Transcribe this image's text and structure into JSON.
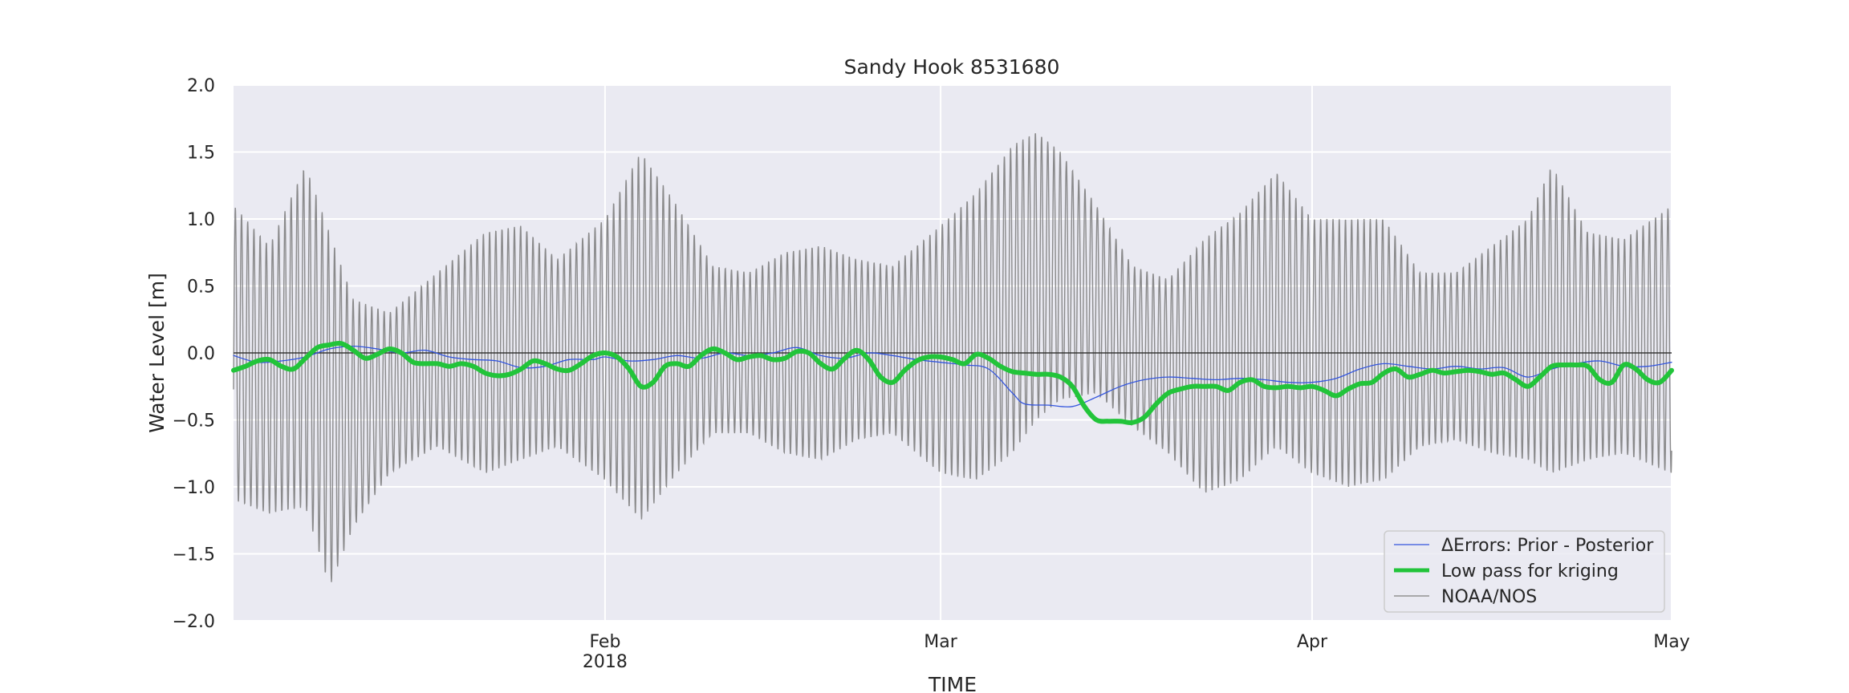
{
  "chart_data": {
    "type": "line",
    "title": "Sandy Hook  8531680",
    "xlabel": "TIME",
    "ylabel": "Water Level [m]",
    "ylim": [
      -2.0,
      2.0
    ],
    "xlim": [
      "2018-01-01",
      "2018-05-01"
    ],
    "grid": true,
    "background": "#eaeaf2",
    "x_ticks": [
      {
        "date": "2018-02-01",
        "label": "Feb",
        "sublabel": "2018"
      },
      {
        "date": "2018-03-01",
        "label": "Mar",
        "sublabel": ""
      },
      {
        "date": "2018-04-01",
        "label": "Apr",
        "sublabel": ""
      },
      {
        "date": "2018-05-01",
        "label": "May",
        "sublabel": ""
      }
    ],
    "y_ticks": [
      {
        "value": 2.0,
        "label": "2.0"
      },
      {
        "value": 1.5,
        "label": "1.5"
      },
      {
        "value": 1.0,
        "label": "1.0"
      },
      {
        "value": 0.5,
        "label": "0.5"
      },
      {
        "value": 0.0,
        "label": "0.0"
      },
      {
        "value": -0.5,
        "label": "−0.5"
      },
      {
        "value": -1.0,
        "label": "−1.0"
      },
      {
        "value": -1.5,
        "label": "−1.5"
      },
      {
        "value": -2.0,
        "label": "−2.0"
      }
    ],
    "legend_position": "lower-right",
    "series": [
      {
        "name": "ΔErrors: Prior - Posterior",
        "color": "#3355dd",
        "points": [
          [
            "2018-01-01",
            -0.02
          ],
          [
            "2018-01-03",
            -0.07
          ],
          [
            "2018-01-05",
            -0.06
          ],
          [
            "2018-01-07",
            -0.03
          ],
          [
            "2018-01-09",
            0.03
          ],
          [
            "2018-01-11",
            0.05
          ],
          [
            "2018-01-13",
            0.03
          ],
          [
            "2018-01-15",
            0.0
          ],
          [
            "2018-01-17",
            0.02
          ],
          [
            "2018-01-19",
            -0.03
          ],
          [
            "2018-01-21",
            -0.05
          ],
          [
            "2018-01-23",
            -0.06
          ],
          [
            "2018-01-25",
            -0.11
          ],
          [
            "2018-01-27",
            -0.1
          ],
          [
            "2018-01-29",
            -0.05
          ],
          [
            "2018-01-31",
            -0.05
          ],
          [
            "2018-02-01",
            -0.03
          ],
          [
            "2018-02-03",
            -0.06
          ],
          [
            "2018-02-05",
            -0.05
          ],
          [
            "2018-02-07",
            -0.02
          ],
          [
            "2018-02-09",
            -0.04
          ],
          [
            "2018-02-11",
            0.0
          ],
          [
            "2018-02-13",
            -0.02
          ],
          [
            "2018-02-15",
            0.0
          ],
          [
            "2018-02-17",
            0.04
          ],
          [
            "2018-02-19",
            -0.02
          ],
          [
            "2018-02-21",
            -0.04
          ],
          [
            "2018-02-23",
            0.0
          ],
          [
            "2018-02-25",
            -0.02
          ],
          [
            "2018-02-27",
            -0.05
          ],
          [
            "2018-03-01",
            -0.07
          ],
          [
            "2018-03-03",
            -0.09
          ],
          [
            "2018-03-05",
            -0.12
          ],
          [
            "2018-03-07",
            -0.3
          ],
          [
            "2018-03-08",
            -0.38
          ],
          [
            "2018-03-10",
            -0.39
          ],
          [
            "2018-03-12",
            -0.4
          ],
          [
            "2018-03-14",
            -0.33
          ],
          [
            "2018-03-16",
            -0.25
          ],
          [
            "2018-03-18",
            -0.2
          ],
          [
            "2018-03-20",
            -0.18
          ],
          [
            "2018-03-22",
            -0.19
          ],
          [
            "2018-03-24",
            -0.2
          ],
          [
            "2018-03-26",
            -0.19
          ],
          [
            "2018-03-28",
            -0.2
          ],
          [
            "2018-03-30",
            -0.22
          ],
          [
            "2018-04-01",
            -0.22
          ],
          [
            "2018-04-03",
            -0.19
          ],
          [
            "2018-04-05",
            -0.12
          ],
          [
            "2018-04-07",
            -0.08
          ],
          [
            "2018-04-09",
            -0.1
          ],
          [
            "2018-04-11",
            -0.12
          ],
          [
            "2018-04-13",
            -0.1
          ],
          [
            "2018-04-15",
            -0.12
          ],
          [
            "2018-04-17",
            -0.11
          ],
          [
            "2018-04-19",
            -0.18
          ],
          [
            "2018-04-21",
            -0.12
          ],
          [
            "2018-04-23",
            -0.08
          ],
          [
            "2018-04-25",
            -0.06
          ],
          [
            "2018-04-27",
            -0.1
          ],
          [
            "2018-04-29",
            -0.1
          ],
          [
            "2018-05-01",
            -0.07
          ]
        ]
      },
      {
        "name": "Low pass for kriging",
        "color": "#22c43a",
        "points": [
          [
            "2018-01-01",
            -0.13
          ],
          [
            "2018-01-02",
            -0.1
          ],
          [
            "2018-01-03",
            -0.06
          ],
          [
            "2018-01-04",
            -0.05
          ],
          [
            "2018-01-05",
            -0.1
          ],
          [
            "2018-01-06",
            -0.12
          ],
          [
            "2018-01-07",
            -0.04
          ],
          [
            "2018-01-08",
            0.04
          ],
          [
            "2018-01-09",
            0.06
          ],
          [
            "2018-01-10",
            0.07
          ],
          [
            "2018-01-11",
            0.02
          ],
          [
            "2018-01-12",
            -0.04
          ],
          [
            "2018-01-13",
            -0.01
          ],
          [
            "2018-01-14",
            0.03
          ],
          [
            "2018-01-15",
            0.0
          ],
          [
            "2018-01-16",
            -0.07
          ],
          [
            "2018-01-17",
            -0.08
          ],
          [
            "2018-01-18",
            -0.08
          ],
          [
            "2018-01-19",
            -0.1
          ],
          [
            "2018-01-20",
            -0.08
          ],
          [
            "2018-01-21",
            -0.1
          ],
          [
            "2018-01-22",
            -0.15
          ],
          [
            "2018-01-23",
            -0.17
          ],
          [
            "2018-01-24",
            -0.16
          ],
          [
            "2018-01-25",
            -0.12
          ],
          [
            "2018-01-26",
            -0.06
          ],
          [
            "2018-01-27",
            -0.08
          ],
          [
            "2018-01-28",
            -0.12
          ],
          [
            "2018-01-29",
            -0.13
          ],
          [
            "2018-01-30",
            -0.08
          ],
          [
            "2018-01-31",
            -0.02
          ],
          [
            "2018-02-01",
            0.0
          ],
          [
            "2018-02-02",
            -0.03
          ],
          [
            "2018-02-03",
            -0.12
          ],
          [
            "2018-02-04",
            -0.25
          ],
          [
            "2018-02-05",
            -0.22
          ],
          [
            "2018-02-06",
            -0.1
          ],
          [
            "2018-02-07",
            -0.08
          ],
          [
            "2018-02-08",
            -0.1
          ],
          [
            "2018-02-09",
            -0.02
          ],
          [
            "2018-02-10",
            0.03
          ],
          [
            "2018-02-11",
            0.0
          ],
          [
            "2018-02-12",
            -0.05
          ],
          [
            "2018-02-13",
            -0.03
          ],
          [
            "2018-02-14",
            -0.02
          ],
          [
            "2018-02-15",
            -0.05
          ],
          [
            "2018-02-16",
            -0.04
          ],
          [
            "2018-02-17",
            0.01
          ],
          [
            "2018-02-18",
            0.0
          ],
          [
            "2018-02-19",
            -0.08
          ],
          [
            "2018-02-20",
            -0.12
          ],
          [
            "2018-02-21",
            -0.04
          ],
          [
            "2018-02-22",
            0.02
          ],
          [
            "2018-02-23",
            -0.05
          ],
          [
            "2018-02-24",
            -0.18
          ],
          [
            "2018-02-25",
            -0.22
          ],
          [
            "2018-02-26",
            -0.13
          ],
          [
            "2018-02-27",
            -0.06
          ],
          [
            "2018-02-28",
            -0.03
          ],
          [
            "2018-03-01",
            -0.03
          ],
          [
            "2018-03-02",
            -0.05
          ],
          [
            "2018-03-03",
            -0.08
          ],
          [
            "2018-03-04",
            -0.01
          ],
          [
            "2018-03-05",
            -0.04
          ],
          [
            "2018-03-06",
            -0.1
          ],
          [
            "2018-03-07",
            -0.14
          ],
          [
            "2018-03-08",
            -0.15
          ],
          [
            "2018-03-09",
            -0.16
          ],
          [
            "2018-03-10",
            -0.16
          ],
          [
            "2018-03-11",
            -0.18
          ],
          [
            "2018-03-12",
            -0.25
          ],
          [
            "2018-03-13",
            -0.4
          ],
          [
            "2018-03-14",
            -0.5
          ],
          [
            "2018-03-15",
            -0.51
          ],
          [
            "2018-03-16",
            -0.51
          ],
          [
            "2018-03-17",
            -0.52
          ],
          [
            "2018-03-18",
            -0.48
          ],
          [
            "2018-03-19",
            -0.38
          ],
          [
            "2018-03-20",
            -0.3
          ],
          [
            "2018-03-21",
            -0.27
          ],
          [
            "2018-03-22",
            -0.25
          ],
          [
            "2018-03-23",
            -0.25
          ],
          [
            "2018-03-24",
            -0.25
          ],
          [
            "2018-03-25",
            -0.28
          ],
          [
            "2018-03-26",
            -0.22
          ],
          [
            "2018-03-27",
            -0.2
          ],
          [
            "2018-03-28",
            -0.25
          ],
          [
            "2018-03-29",
            -0.26
          ],
          [
            "2018-03-30",
            -0.25
          ],
          [
            "2018-03-31",
            -0.26
          ],
          [
            "2018-04-01",
            -0.25
          ],
          [
            "2018-04-02",
            -0.28
          ],
          [
            "2018-04-03",
            -0.32
          ],
          [
            "2018-04-04",
            -0.27
          ],
          [
            "2018-04-05",
            -0.23
          ],
          [
            "2018-04-06",
            -0.22
          ],
          [
            "2018-04-07",
            -0.15
          ],
          [
            "2018-04-08",
            -0.12
          ],
          [
            "2018-04-09",
            -0.18
          ],
          [
            "2018-04-10",
            -0.16
          ],
          [
            "2018-04-11",
            -0.13
          ],
          [
            "2018-04-12",
            -0.15
          ],
          [
            "2018-04-13",
            -0.14
          ],
          [
            "2018-04-14",
            -0.13
          ],
          [
            "2018-04-15",
            -0.14
          ],
          [
            "2018-04-16",
            -0.16
          ],
          [
            "2018-04-17",
            -0.15
          ],
          [
            "2018-04-18",
            -0.2
          ],
          [
            "2018-04-19",
            -0.25
          ],
          [
            "2018-04-20",
            -0.18
          ],
          [
            "2018-04-21",
            -0.1
          ],
          [
            "2018-04-22",
            -0.09
          ],
          [
            "2018-04-23",
            -0.09
          ],
          [
            "2018-04-24",
            -0.1
          ],
          [
            "2018-04-25",
            -0.2
          ],
          [
            "2018-04-26",
            -0.22
          ],
          [
            "2018-04-27",
            -0.09
          ],
          [
            "2018-04-28",
            -0.12
          ],
          [
            "2018-04-29",
            -0.2
          ],
          [
            "2018-04-30",
            -0.22
          ],
          [
            "2018-05-01",
            -0.13
          ]
        ]
      },
      {
        "name": "NOAA/NOS",
        "color": "#808080",
        "type": "tidal",
        "period_days": 0.5175,
        "phase_days": 0.15,
        "range_points": [
          [
            "2018-01-01",
            1.1,
            -1.1
          ],
          [
            "2018-01-04",
            0.8,
            -1.2
          ],
          [
            "2018-01-07",
            1.4,
            -1.15
          ],
          [
            "2018-01-09",
            0.9,
            -1.75
          ],
          [
            "2018-01-11",
            0.4,
            -1.3
          ],
          [
            "2018-01-14",
            0.3,
            -0.9
          ],
          [
            "2018-01-18",
            0.6,
            -0.7
          ],
          [
            "2018-01-22",
            0.9,
            -0.9
          ],
          [
            "2018-01-25",
            0.95,
            -0.8
          ],
          [
            "2018-01-28",
            0.7,
            -0.7
          ],
          [
            "2018-02-01",
            1.0,
            -0.95
          ],
          [
            "2018-02-04",
            1.5,
            -1.25
          ],
          [
            "2018-02-07",
            1.1,
            -0.9
          ],
          [
            "2018-02-10",
            0.65,
            -0.6
          ],
          [
            "2018-02-13",
            0.6,
            -0.6
          ],
          [
            "2018-02-16",
            0.75,
            -0.75
          ],
          [
            "2018-02-19",
            0.8,
            -0.8
          ],
          [
            "2018-02-22",
            0.7,
            -0.65
          ],
          [
            "2018-02-25",
            0.65,
            -0.6
          ],
          [
            "2018-03-01",
            0.95,
            -0.9
          ],
          [
            "2018-03-04",
            1.2,
            -0.95
          ],
          [
            "2018-03-07",
            1.55,
            -0.75
          ],
          [
            "2018-03-09",
            1.65,
            -0.5
          ],
          [
            "2018-03-11",
            1.5,
            -0.35
          ],
          [
            "2018-03-14",
            1.1,
            -0.3
          ],
          [
            "2018-03-17",
            0.65,
            -0.55
          ],
          [
            "2018-03-20",
            0.55,
            -0.75
          ],
          [
            "2018-03-23",
            0.85,
            -1.05
          ],
          [
            "2018-03-26",
            1.05,
            -0.95
          ],
          [
            "2018-03-29",
            1.35,
            -0.7
          ],
          [
            "2018-04-01",
            1.0,
            -0.9
          ],
          [
            "2018-04-04",
            1.0,
            -1.0
          ],
          [
            "2018-04-07",
            1.0,
            -0.95
          ],
          [
            "2018-04-10",
            0.6,
            -0.7
          ],
          [
            "2018-04-13",
            0.6,
            -0.65
          ],
          [
            "2018-04-16",
            0.8,
            -0.75
          ],
          [
            "2018-04-19",
            1.0,
            -0.8
          ],
          [
            "2018-04-21",
            1.4,
            -0.9
          ],
          [
            "2018-04-24",
            0.9,
            -0.8
          ],
          [
            "2018-04-27",
            0.85,
            -0.75
          ],
          [
            "2018-05-01",
            1.1,
            -0.9
          ]
        ]
      }
    ],
    "reference_line": {
      "y": 0.0,
      "color": "#333333"
    }
  }
}
